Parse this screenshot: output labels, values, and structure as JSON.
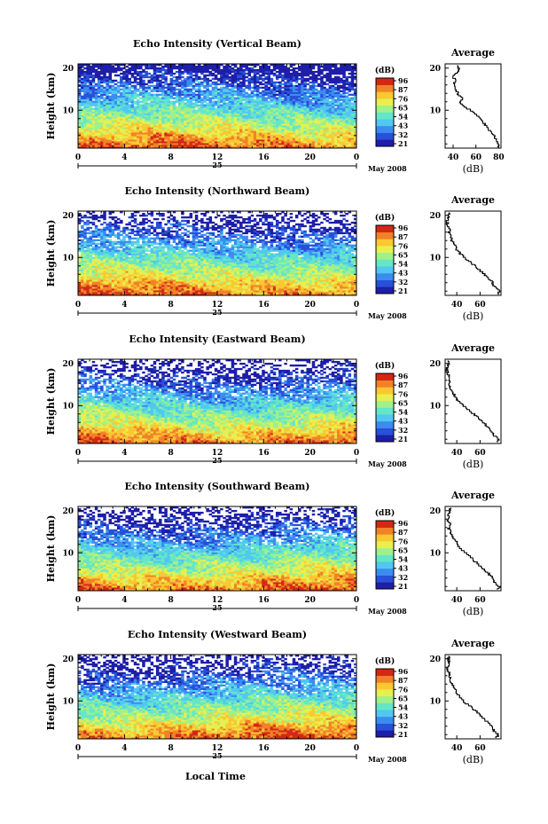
{
  "common": {
    "ylabel": "Height (km)",
    "colorbar_label": "(dB)",
    "colorbar_ticks": [
      "96",
      "87",
      "76",
      "65",
      "54",
      "43",
      "32",
      "21"
    ],
    "x_ticks": [
      "0",
      "4",
      "8",
      "12",
      "16",
      "20",
      "0"
    ],
    "date_day": "25",
    "date_month": "May 2008",
    "xlabel": "Local Time",
    "avg_title": "Average",
    "avg_xlabel": "(dB)",
    "y_ticks_main": [
      "20",
      "10"
    ],
    "y_ticks_avg": [
      "20",
      "10"
    ],
    "colormap": [
      "#1e1ea8",
      "#2850d8",
      "#3c8cf0",
      "#50c8f0",
      "#64e6c8",
      "#a0f08c",
      "#e6f050",
      "#fac832",
      "#f08228",
      "#d22814"
    ]
  },
  "chart_data": [
    {
      "type": "heatmap",
      "title": "Echo Intensity (Vertical Beam)",
      "avg_xticks": [
        "40",
        "60",
        "80"
      ],
      "xlim_hours": [
        0,
        24
      ],
      "ylim_km": [
        1,
        21
      ],
      "avg_xlim_db": [
        33,
        82
      ],
      "profile_height_km": [
        1,
        2,
        3,
        4,
        5,
        6,
        7,
        8,
        9,
        10,
        11,
        12,
        13,
        14,
        15,
        16,
        17,
        18,
        19,
        20
      ],
      "profile_mean_db": [
        78,
        80,
        78,
        76,
        73,
        70,
        67,
        64,
        60,
        56,
        50,
        46,
        48,
        44,
        43,
        40,
        42,
        40,
        44,
        45
      ]
    },
    {
      "type": "heatmap",
      "title": "Echo Intensity (Northward Beam)",
      "avg_xticks": [
        "40",
        "60"
      ],
      "xlim_hours": [
        0,
        24
      ],
      "ylim_km": [
        1,
        21
      ],
      "avg_xlim_db": [
        30,
        78
      ],
      "profile_height_km": [
        1,
        2,
        3,
        4,
        5,
        6,
        7,
        8,
        9,
        10,
        11,
        12,
        13,
        14,
        15,
        16,
        17,
        18,
        19,
        20
      ],
      "profile_mean_db": [
        74,
        77,
        73,
        71,
        68,
        64,
        60,
        56,
        52,
        47,
        43,
        40,
        38,
        36,
        35,
        33,
        34,
        32,
        32,
        33
      ]
    },
    {
      "type": "heatmap",
      "title": "Echo Intensity (Eastward Beam)",
      "avg_xticks": [
        "40",
        "60"
      ],
      "xlim_hours": [
        0,
        24
      ],
      "ylim_km": [
        1,
        21
      ],
      "avg_xlim_db": [
        30,
        78
      ],
      "profile_height_km": [
        1,
        2,
        3,
        4,
        5,
        6,
        7,
        8,
        9,
        10,
        11,
        12,
        13,
        14,
        15,
        16,
        17,
        18,
        19,
        20
      ],
      "profile_mean_db": [
        74,
        76,
        72,
        70,
        67,
        63,
        59,
        55,
        51,
        46,
        42,
        39,
        37,
        35,
        34,
        33,
        33,
        32,
        31,
        33
      ]
    },
    {
      "type": "heatmap",
      "title": "Echo Intensity (Southward Beam)",
      "avg_xticks": [
        "40",
        "60"
      ],
      "xlim_hours": [
        0,
        24
      ],
      "ylim_km": [
        1,
        21
      ],
      "avg_xlim_db": [
        30,
        78
      ],
      "profile_height_km": [
        1,
        2,
        3,
        4,
        5,
        6,
        7,
        8,
        9,
        10,
        11,
        12,
        13,
        14,
        15,
        16,
        17,
        18,
        19,
        20
      ],
      "profile_mean_db": [
        74,
        77,
        73,
        71,
        68,
        64,
        60,
        56,
        52,
        48,
        44,
        41,
        39,
        36,
        35,
        33,
        34,
        32,
        33,
        34
      ]
    },
    {
      "type": "heatmap",
      "title": "Echo Intensity (Westward Beam)",
      "avg_xticks": [
        "40",
        "60"
      ],
      "xlim_hours": [
        0,
        24
      ],
      "ylim_km": [
        1,
        21
      ],
      "avg_xlim_db": [
        30,
        78
      ],
      "profile_height_km": [
        1,
        2,
        3,
        4,
        5,
        6,
        7,
        8,
        9,
        10,
        11,
        12,
        13,
        14,
        15,
        16,
        17,
        18,
        19,
        20
      ],
      "profile_mean_db": [
        73,
        76,
        72,
        70,
        67,
        63,
        59,
        55,
        51,
        46,
        43,
        40,
        38,
        36,
        35,
        34,
        33,
        32,
        33,
        33
      ]
    }
  ]
}
